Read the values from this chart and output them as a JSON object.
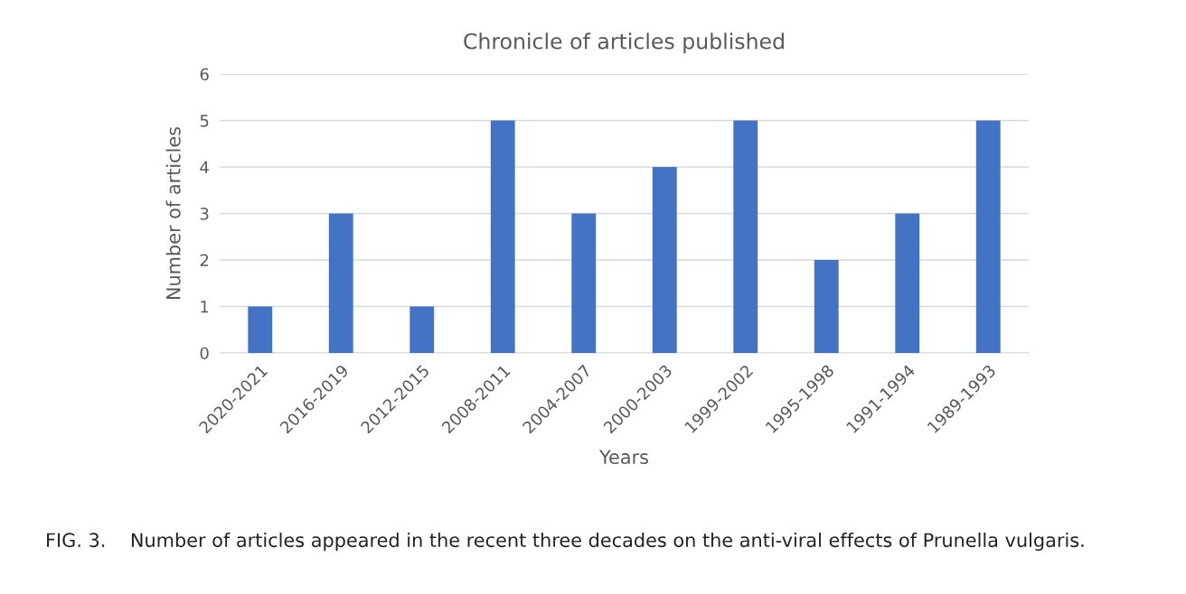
{
  "chart_data": {
    "type": "bar",
    "title": "Chronicle of articles published",
    "xlabel": "Years",
    "ylabel": "Number of articles",
    "categories": [
      "2020-2021",
      "2016-2019",
      "2012-2015",
      "2008-2011",
      "2004-2007",
      "2000-2003",
      "1999-2002",
      "1995-1998",
      "1991-1994",
      "1989-1993"
    ],
    "values": [
      1,
      3,
      1,
      5,
      3,
      4,
      5,
      2,
      3,
      5
    ],
    "color": "#4472c4",
    "ylim": [
      0,
      6
    ],
    "yticks": [
      0,
      1,
      2,
      3,
      4,
      5,
      6
    ],
    "grid": "y",
    "annotations": [
      "FIG. 3.    Number of articles appeared in the recent three decades on the anti-viral effects of Prunella vulgaris."
    ]
  }
}
